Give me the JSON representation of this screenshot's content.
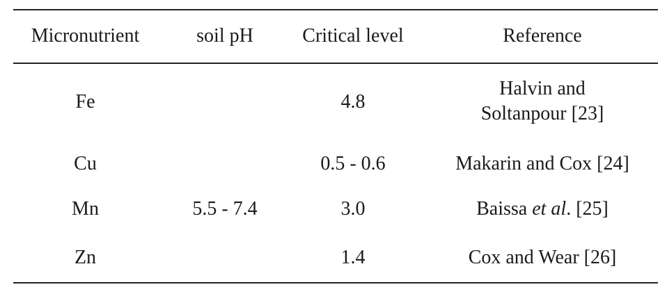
{
  "table": {
    "headers": {
      "micronutrient": "Micronutrient",
      "soil_ph": "soil pH",
      "critical_level": "Critical level",
      "reference": "Reference"
    },
    "soil_ph_value": "5.5 - 7.4",
    "rows": [
      {
        "micronutrient": "Fe",
        "critical_level": "4.8",
        "reference_line1": "Halvin and",
        "reference_line2": "Soltanpour [23]"
      },
      {
        "micronutrient": "Cu",
        "critical_level": "0.5 - 0.6",
        "reference": "Makarin and Cox [24]"
      },
      {
        "micronutrient": "Mn",
        "critical_level": "3.0",
        "reference_prefix": "Baissa ",
        "reference_italic": "et al",
        "reference_suffix": ". [25]"
      },
      {
        "micronutrient": "Zn",
        "critical_level": "1.4",
        "reference": "Cox and Wear [26]"
      }
    ]
  }
}
